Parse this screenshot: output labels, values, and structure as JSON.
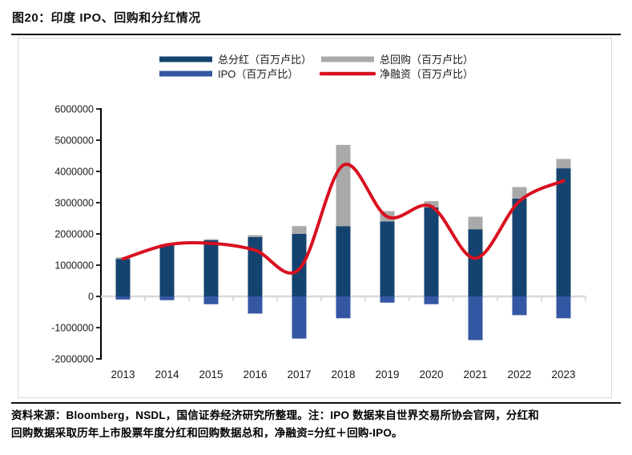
{
  "figure": {
    "title": "图20：印度 IPO、回购和分红情况",
    "footer": {
      "lines": [
        "资料来源：Bloomberg，NSDL，国信证券经济研究所整理。注：IPO 数据来自世界交易所协会官网，分红和",
        "回购数据采取历年上市股票年度分红和回购数据总和，净融资=分红＋回购-IPO。"
      ]
    }
  },
  "colors": {
    "dividend": "#15436F",
    "buyback": "#A9A9A9",
    "ipo": "#3457A3",
    "net": "#D9101F",
    "axis": "#000000",
    "zero_line": "#D9D9D9",
    "box_border": "#D9D9D9",
    "text": "#1A1A1A"
  },
  "chart_data": {
    "type": "bar",
    "subtype": "stacked-bar-with-line",
    "categories": [
      "2013",
      "2014",
      "2015",
      "2016",
      "2017",
      "2018",
      "2019",
      "2020",
      "2021",
      "2022",
      "2023"
    ],
    "series": [
      {
        "name": "总分红（百万卢比）",
        "kind": "bar",
        "stack": "pos",
        "color_key": "dividend",
        "values": [
          1200000,
          1650000,
          1800000,
          1900000,
          2000000,
          2250000,
          2400000,
          2850000,
          2150000,
          3130000,
          4100000
        ]
      },
      {
        "name": "总回购（百万卢比）",
        "kind": "bar",
        "stack": "pos",
        "color_key": "buyback",
        "values": [
          50000,
          20000,
          30000,
          60000,
          250000,
          2600000,
          330000,
          200000,
          400000,
          370000,
          300000
        ]
      },
      {
        "name": "IPO（百万卢比）",
        "kind": "bar",
        "stack": "neg",
        "color_key": "ipo",
        "values": [
          -100000,
          -120000,
          -250000,
          -550000,
          -1350000,
          -700000,
          -200000,
          -250000,
          -1400000,
          -600000,
          -700000
        ]
      },
      {
        "name": "净融资（百万卢比）",
        "kind": "line",
        "color_key": "net",
        "values": [
          1200000,
          1650000,
          1700000,
          1480000,
          870000,
          4200000,
          2550000,
          2880000,
          1220000,
          3050000,
          3700000
        ]
      }
    ],
    "title": "",
    "xlabel": "",
    "ylabel": "",
    "ylim": [
      -2000000,
      6000000
    ],
    "y_ticks": [
      "6000000",
      "5000000",
      "4000000",
      "3000000",
      "2000000",
      "1000000",
      "0",
      "-1000000",
      "-2000000"
    ],
    "grid": false,
    "legend_position": "top",
    "legend_order": [
      "总分红（百万卢比）",
      "总回购（百万卢比）",
      "IPO（百万卢比）",
      "净融资（百万卢比）"
    ]
  }
}
